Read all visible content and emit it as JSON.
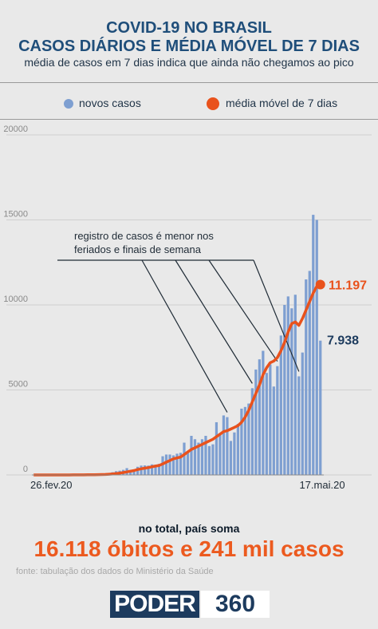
{
  "header": {
    "title_line1": "COVID-19 NO BRASIL",
    "title_line2": "CASOS DIÁRIOS E MÉDIA MÓVEL DE 7 DIAS",
    "subtitle": "média de casos em 7 dias indica que ainda não chegamos ao pico"
  },
  "legend": {
    "bars_label": "novos casos",
    "line_label": "média móvel de 7 dias"
  },
  "colors": {
    "bars": "#7e9fd1",
    "line": "#e9521c",
    "title": "#1f4e7a",
    "headline": "#ec5a1f"
  },
  "chart_data": {
    "type": "bar",
    "x_start_label": "26.fev.20",
    "x_end_label": "17.mai.20",
    "yticks": [
      0,
      5000,
      10000,
      15000,
      20000
    ],
    "ylim": [
      0,
      20000
    ],
    "grid": true,
    "series": [
      {
        "name": "novos casos",
        "type": "bar",
        "values": [
          1,
          0,
          0,
          0,
          0,
          0,
          0,
          0,
          0,
          1,
          4,
          6,
          6,
          12,
          20,
          25,
          21,
          23,
          40,
          80,
          60,
          110,
          160,
          220,
          250,
          300,
          400,
          300,
          250,
          480,
          550,
          560,
          550,
          620,
          600,
          650,
          1100,
          1200,
          1200,
          1150,
          1250,
          1300,
          1900,
          1300,
          2300,
          2100,
          1900,
          2100,
          2300,
          1700,
          1800,
          3100,
          2400,
          3500,
          3400,
          2000,
          2500,
          3000,
          3900,
          4000,
          4200,
          5100,
          6200,
          6800,
          7300,
          6000,
          6500,
          5200,
          6400,
          8200,
          10000,
          10500,
          9800,
          10600,
          5800,
          7200,
          11500,
          12000,
          15300,
          15000,
          7900
        ]
      },
      {
        "name": "média móvel de 7 dias",
        "type": "line",
        "values": [
          1,
          1,
          1,
          1,
          1,
          1,
          1,
          1,
          1,
          1,
          2,
          3,
          4,
          5,
          7,
          9,
          12,
          15,
          20,
          25,
          30,
          40,
          60,
          80,
          110,
          140,
          180,
          220,
          260,
          320,
          360,
          400,
          430,
          480,
          520,
          560,
          650,
          750,
          850,
          950,
          1000,
          1050,
          1200,
          1350,
          1500,
          1600,
          1700,
          1800,
          1900,
          2000,
          2100,
          2250,
          2400,
          2550,
          2600,
          2700,
          2800,
          2900,
          3100,
          3400,
          3800,
          4300,
          4800,
          5300,
          5900,
          6300,
          6600,
          6700,
          6900,
          7300,
          7800,
          8400,
          8900,
          9000,
          8800,
          9200,
          9700,
          10200,
          10700,
          11100,
          11197
        ]
      }
    ],
    "annotations": {
      "note": "registro de casos é menor nos feriados e finais de semana",
      "line_end_label": "11.197",
      "bar_end_label": "7.938"
    }
  },
  "footer": {
    "note": "no total, país soma",
    "headline": "16.118 óbitos e 241 mil casos",
    "source": "fonte: tabulação dos dados do Ministério da Saúde",
    "logo_a": "PODER",
    "logo_b": "360"
  }
}
